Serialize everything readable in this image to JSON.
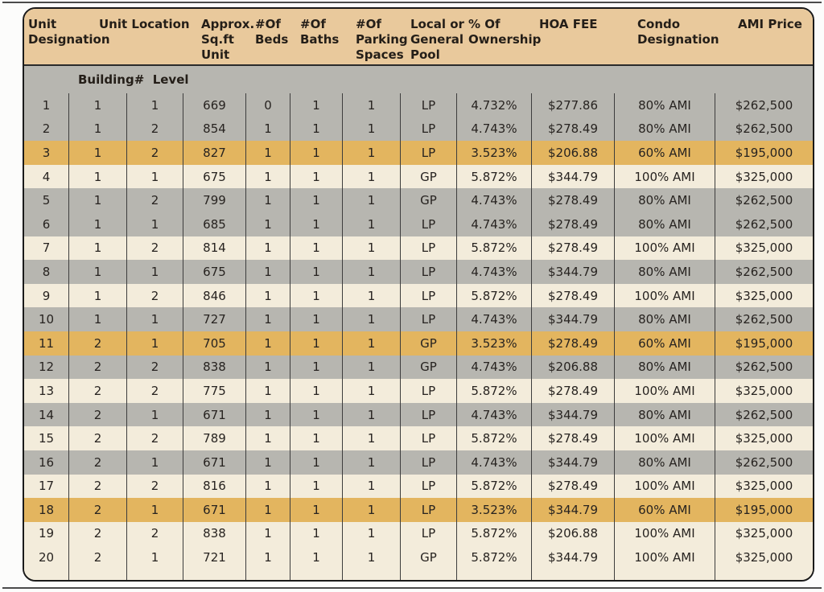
{
  "colors": {
    "header_bg": "#e9c99c",
    "gray_row": "#b7b6b0",
    "cream_row": "#f3ecdb",
    "gold_row": "#e3b55f",
    "table_border": "#1a1a1a",
    "col_line": "#3d3d3d",
    "text": "#272320"
  },
  "doc": {
    "header": {
      "labels": [
        {
          "id": "unit-designation",
          "text": "Unit\nDesignation"
        },
        {
          "id": "unit-location",
          "text": "Unit Location"
        },
        {
          "id": "approx-sqft",
          "text": "Approx.\nSq.ft\nUnit"
        },
        {
          "id": "beds",
          "text": "#Of\nBeds"
        },
        {
          "id": "baths",
          "text": "#Of\nBaths"
        },
        {
          "id": "parking",
          "text": "#Of\nParking\nSpaces"
        },
        {
          "id": "pool",
          "text": "Local or\nGeneral\nPool"
        },
        {
          "id": "ownership",
          "text": "% Of\nOwnership"
        },
        {
          "id": "hoa-fee",
          "text": "HOA FEE"
        },
        {
          "id": "condo-designation",
          "text": "Condo\nDesignation"
        },
        {
          "id": "ami-price",
          "text": "AMI Price"
        }
      ]
    },
    "subheader": "Building#  Level",
    "rows": [
      {
        "unit": "1",
        "building": "1",
        "level": "1",
        "sqft": "669",
        "beds": "0",
        "baths": "1",
        "parking": "1",
        "pool": "LP",
        "ownership": "4.732%",
        "hoa": "$277.86",
        "condo": "80% AMI",
        "price": "$262,500",
        "bg": "gray"
      },
      {
        "unit": "2",
        "building": "1",
        "level": "2",
        "sqft": "854",
        "beds": "1",
        "baths": "1",
        "parking": "1",
        "pool": "LP",
        "ownership": "4.743%",
        "hoa": "$278.49",
        "condo": "80% AMI",
        "price": "$262,500",
        "bg": "gray"
      },
      {
        "unit": "3",
        "building": "1",
        "level": "2",
        "sqft": "827",
        "beds": "1",
        "baths": "1",
        "parking": "1",
        "pool": "LP",
        "ownership": "3.523%",
        "hoa": "$206.88",
        "condo": "60% AMI",
        "price": "$195,000",
        "bg": "gold"
      },
      {
        "unit": "4",
        "building": "1",
        "level": "1",
        "sqft": "675",
        "beds": "1",
        "baths": "1",
        "parking": "1",
        "pool": "GP",
        "ownership": "5.872%",
        "hoa": "$344.79",
        "condo": "100% AMI",
        "price": "$325,000",
        "bg": "cream"
      },
      {
        "unit": "5",
        "building": "1",
        "level": "2",
        "sqft": "799",
        "beds": "1",
        "baths": "1",
        "parking": "1",
        "pool": "GP",
        "ownership": "4.743%",
        "hoa": "$278.49",
        "condo": "80% AMI",
        "price": "$262,500",
        "bg": "gray"
      },
      {
        "unit": "6",
        "building": "1",
        "level": "1",
        "sqft": "685",
        "beds": "1",
        "baths": "1",
        "parking": "1",
        "pool": "LP",
        "ownership": "4.743%",
        "hoa": "$278.49",
        "condo": "80% AMI",
        "price": "$262,500",
        "bg": "gray"
      },
      {
        "unit": "7",
        "building": "1",
        "level": "2",
        "sqft": "814",
        "beds": "1",
        "baths": "1",
        "parking": "1",
        "pool": "LP",
        "ownership": "5.872%",
        "hoa": "$278.49",
        "condo": "100% AMI",
        "price": "$325,000",
        "bg": "cream"
      },
      {
        "unit": "8",
        "building": "1",
        "level": "1",
        "sqft": "675",
        "beds": "1",
        "baths": "1",
        "parking": "1",
        "pool": "LP",
        "ownership": "4.743%",
        "hoa": "$344.79",
        "condo": "80% AMI",
        "price": "$262,500",
        "bg": "gray"
      },
      {
        "unit": "9",
        "building": "1",
        "level": "2",
        "sqft": "846",
        "beds": "1",
        "baths": "1",
        "parking": "1",
        "pool": "LP",
        "ownership": "5.872%",
        "hoa": "$278.49",
        "condo": "100% AMI",
        "price": "$325,000",
        "bg": "cream"
      },
      {
        "unit": "10",
        "building": "1",
        "level": "1",
        "sqft": "727",
        "beds": "1",
        "baths": "1",
        "parking": "1",
        "pool": "LP",
        "ownership": "4.743%",
        "hoa": "$344.79",
        "condo": "80% AMI",
        "price": "$262,500",
        "bg": "gray"
      },
      {
        "unit": "11",
        "building": "2",
        "level": "1",
        "sqft": "705",
        "beds": "1",
        "baths": "1",
        "parking": "1",
        "pool": "GP",
        "ownership": "3.523%",
        "hoa": "$278.49",
        "condo": "60% AMI",
        "price": "$195,000",
        "bg": "gold"
      },
      {
        "unit": "12",
        "building": "2",
        "level": "2",
        "sqft": "838",
        "beds": "1",
        "baths": "1",
        "parking": "1",
        "pool": "GP",
        "ownership": "4.743%",
        "hoa": "$206.88",
        "condo": "80% AMI",
        "price": "$262,500",
        "bg": "gray"
      },
      {
        "unit": "13",
        "building": "2",
        "level": "2",
        "sqft": "775",
        "beds": "1",
        "baths": "1",
        "parking": "1",
        "pool": "LP",
        "ownership": "5.872%",
        "hoa": "$278.49",
        "condo": "100% AMI",
        "price": "$325,000",
        "bg": "cream"
      },
      {
        "unit": "14",
        "building": "2",
        "level": "1",
        "sqft": "671",
        "beds": "1",
        "baths": "1",
        "parking": "1",
        "pool": "LP",
        "ownership": "4.743%",
        "hoa": "$344.79",
        "condo": "80% AMI",
        "price": "$262,500",
        "bg": "gray"
      },
      {
        "unit": "15",
        "building": "2",
        "level": "2",
        "sqft": "789",
        "beds": "1",
        "baths": "1",
        "parking": "1",
        "pool": "LP",
        "ownership": "5.872%",
        "hoa": "$278.49",
        "condo": "100% AMI",
        "price": "$325,000",
        "bg": "cream"
      },
      {
        "unit": "16",
        "building": "2",
        "level": "1",
        "sqft": "671",
        "beds": "1",
        "baths": "1",
        "parking": "1",
        "pool": "LP",
        "ownership": "4.743%",
        "hoa": "$344.79",
        "condo": "80% AMI",
        "price": "$262,500",
        "bg": "gray"
      },
      {
        "unit": "17",
        "building": "2",
        "level": "2",
        "sqft": "816",
        "beds": "1",
        "baths": "1",
        "parking": "1",
        "pool": "LP",
        "ownership": "5.872%",
        "hoa": "$278.49",
        "condo": "100% AMI",
        "price": "$325,000",
        "bg": "cream"
      },
      {
        "unit": "18",
        "building": "2",
        "level": "1",
        "sqft": "671",
        "beds": "1",
        "baths": "1",
        "parking": "1",
        "pool": "LP",
        "ownership": "3.523%",
        "hoa": "$344.79",
        "condo": "60% AMI",
        "price": "$195,000",
        "bg": "gold"
      },
      {
        "unit": "19",
        "building": "2",
        "level": "2",
        "sqft": "838",
        "beds": "1",
        "baths": "1",
        "parking": "1",
        "pool": "LP",
        "ownership": "5.872%",
        "hoa": "$206.88",
        "condo": "100% AMI",
        "price": "$325,000",
        "bg": "cream"
      },
      {
        "unit": "20",
        "building": "2",
        "level": "1",
        "sqft": "721",
        "beds": "1",
        "baths": "1",
        "parking": "1",
        "pool": "GP",
        "ownership": "5.872%",
        "hoa": "$344.79",
        "condo": "100% AMI",
        "price": "$325,000",
        "bg": "cream"
      }
    ]
  }
}
